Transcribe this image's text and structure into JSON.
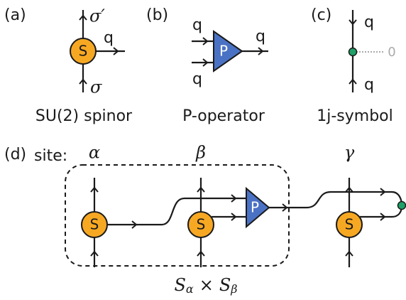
{
  "a": {
    "label": "(a)",
    "top": "σ′",
    "right": "q",
    "bottom": "σ",
    "node": "S",
    "caption": "SU(2) spinor"
  },
  "b": {
    "label": "(b)",
    "in_top": "q",
    "in_bottom": "q",
    "out": "q",
    "node": "P",
    "caption": "P-operator"
  },
  "c": {
    "label": "(c)",
    "top": "q",
    "side": "0",
    "bottom": "q",
    "caption": "1j-symbol"
  },
  "d": {
    "label": "(d)",
    "site": "site:",
    "sites": [
      "α",
      "β",
      "γ"
    ],
    "nodes": [
      "S",
      "S",
      "S",
      "P"
    ],
    "product": [
      {
        "base": "S",
        "sub": "α"
      },
      "×",
      {
        "base": "S",
        "sub": "β"
      }
    ]
  }
}
